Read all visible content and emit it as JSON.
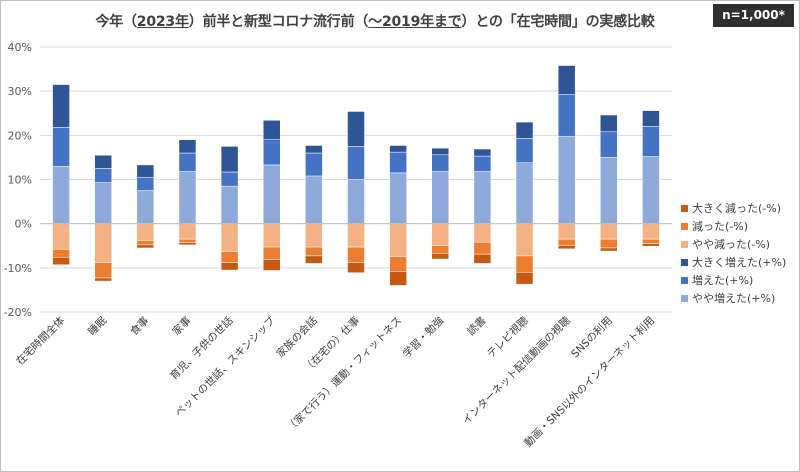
{
  "badge": "n=1,000*",
  "chart_data": {
    "type": "bar",
    "stacked": true,
    "title_parts": [
      {
        "t": "今年（",
        "u": false
      },
      {
        "t": "2023年",
        "u": true
      },
      {
        "t": "）前半と新型コロナ流行前（",
        "u": false
      },
      {
        "t": "～2019年まで",
        "u": true
      },
      {
        "t": "）との「在宅時間」の実感比較",
        "u": false
      }
    ],
    "ylim": [
      -20,
      40
    ],
    "yticks": [
      -20,
      -10,
      0,
      10,
      20,
      30,
      40
    ],
    "ytick_labels": [
      "-20%",
      "-10%",
      "0%",
      "10%",
      "20%",
      "30%",
      "40%"
    ],
    "grid": true,
    "categories": [
      "在宅時間全体",
      "睡眠",
      "食事",
      "家事",
      "育児、子供の世話",
      "ペットの世話、スキンシップ",
      "家族の会話",
      "（在宅の）仕事",
      "（家で行う）運動・フィットネス",
      "学習・勉強",
      "読書",
      "テレビ視聴",
      "インターネット配信動画の視聴",
      "SNSの利用",
      "動画・SNS以外のインターネット利用"
    ],
    "series": [
      {
        "name": "やや増えた(+%)",
        "sign": 1,
        "color": "#8eaadb",
        "values": [
          13.0,
          9.3,
          7.5,
          11.8,
          8.5,
          13.3,
          10.8,
          10.0,
          11.5,
          11.8,
          11.8,
          13.8,
          19.8,
          15.0,
          15.2
        ]
      },
      {
        "name": "増えた(+%)",
        "sign": 1,
        "color": "#4472c4",
        "values": [
          8.8,
          3.2,
          3.0,
          4.2,
          3.2,
          5.7,
          5.2,
          7.5,
          4.7,
          3.8,
          3.5,
          5.5,
          9.5,
          5.8,
          6.8
        ]
      },
      {
        "name": "大きく増えた(+%)",
        "sign": 1,
        "color": "#2f5597",
        "values": [
          9.7,
          3.0,
          2.8,
          3.0,
          5.8,
          4.4,
          1.7,
          7.9,
          1.5,
          1.5,
          1.6,
          3.7,
          6.5,
          3.8,
          3.6
        ]
      },
      {
        "name": "やや減った(-%)",
        "sign": -1,
        "color": "#f4b183",
        "values": [
          5.8,
          8.8,
          3.8,
          3.5,
          6.3,
          5.3,
          5.3,
          5.3,
          7.5,
          5.0,
          4.2,
          7.3,
          3.5,
          3.5,
          3.5
        ]
      },
      {
        "name": "減った(-%)",
        "sign": -1,
        "color": "#ed7d31",
        "values": [
          1.8,
          3.5,
          1.0,
          0.8,
          2.5,
          2.8,
          2.0,
          3.5,
          3.3,
          1.7,
          2.7,
          3.7,
          1.5,
          2.0,
          1.0
        ]
      },
      {
        "name": "大きく減った(-%)",
        "sign": -1,
        "color": "#c55a11",
        "values": [
          1.7,
          0.7,
          0.7,
          0.5,
          1.7,
          2.5,
          1.7,
          2.3,
          3.2,
          1.3,
          2.1,
          2.7,
          0.7,
          0.7,
          0.6
        ]
      }
    ],
    "legend": [
      "大きく減った(-%)",
      "減った(-%)",
      "やや減った(-%)",
      "大きく増えた(+%)",
      "増えた(+%)",
      "やや増えた(+%)"
    ],
    "legend_position": "right"
  }
}
